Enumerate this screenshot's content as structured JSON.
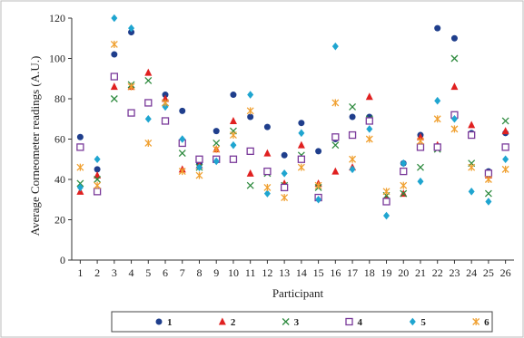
{
  "chart_data": {
    "type": "scatter",
    "title": "",
    "xlabel": "Participant",
    "ylabel": "Average Corneometer readings (A.U.)",
    "ylim": [
      0,
      120
    ],
    "yticks": [
      0,
      20,
      40,
      60,
      80,
      100,
      120
    ],
    "x": [
      1,
      2,
      3,
      4,
      5,
      6,
      7,
      8,
      9,
      10,
      11,
      12,
      13,
      14,
      15,
      16,
      17,
      18,
      19,
      20,
      21,
      22,
      23,
      24,
      25,
      26
    ],
    "grid": false,
    "legend_position": "bottom",
    "series": [
      {
        "name": "1",
        "marker": "circle",
        "color": "#1f3e8c",
        "values": [
          61,
          45,
          102,
          113,
          78,
          82,
          74,
          48,
          64,
          82,
          71,
          66,
          52,
          68,
          54,
          60,
          71,
          71,
          30,
          48,
          62,
          115,
          110,
          63,
          44,
          63
        ]
      },
      {
        "name": "2",
        "marker": "triangle",
        "color": "#e02020",
        "values": [
          34,
          42,
          86,
          86,
          93,
          80,
          45,
          47,
          55,
          69,
          43,
          53,
          38,
          57,
          38,
          44,
          46,
          81,
          31,
          33,
          61,
          57,
          86,
          67,
          42,
          64
        ]
      },
      {
        "name": "3",
        "marker": "x",
        "color": "#2d8a3e",
        "values": [
          38,
          40,
          80,
          87,
          89,
          78,
          53,
          46,
          58,
          64,
          37,
          43,
          37,
          52,
          36,
          57,
          76,
          70,
          32,
          33,
          46,
          55,
          100,
          48,
          33,
          69
        ]
      },
      {
        "name": "4",
        "marker": "square",
        "color": "#7a3a9a",
        "values": [
          56,
          34,
          91,
          73,
          78,
          69,
          58,
          50,
          50,
          50,
          54,
          44,
          36,
          50,
          31,
          61,
          62,
          69,
          29,
          44,
          56,
          56,
          72,
          62,
          43,
          56
        ]
      },
      {
        "name": "5",
        "marker": "diamond",
        "color": "#1fa5d0",
        "values": [
          36,
          50,
          120,
          115,
          70,
          76,
          60,
          46,
          49,
          57,
          82,
          33,
          43,
          63,
          30,
          106,
          45,
          65,
          22,
          48,
          39,
          79,
          70,
          34,
          29,
          50
        ]
      },
      {
        "name": "6",
        "marker": "asterisk",
        "color": "#f0a030",
        "values": [
          46,
          37,
          107,
          86,
          58,
          78,
          44,
          42,
          55,
          62,
          74,
          36,
          31,
          46,
          37,
          78,
          50,
          60,
          34,
          37,
          59,
          70,
          65,
          46,
          40,
          45
        ]
      }
    ]
  }
}
